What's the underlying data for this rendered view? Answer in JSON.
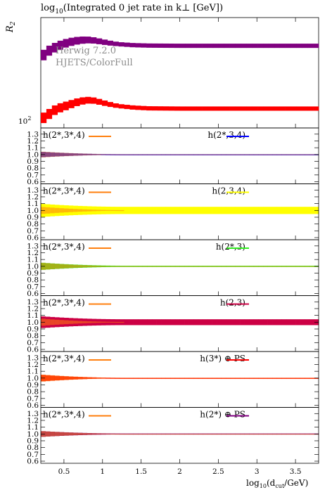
{
  "header": {
    "title": "log10(Integrated 0 jet rate in k⊥ [GeV])",
    "title_main": "log",
    "title_sub": "10",
    "title_rest": "(Integrated 0 jet rate in k",
    "title_kperp": "⊥",
    "title_end": " [GeV])"
  },
  "main_plot": {
    "ylabel": "R",
    "ylabel_sub": "2",
    "ytick_label": "10",
    "ytick_sup": "2",
    "brand_line1": "Herwig 7.2.0",
    "brand_line2": "HJETS/ColorFull"
  },
  "x_axis": {
    "label_main": "log",
    "label_sub": "10",
    "label_mid": "(d",
    "label_sub2": "cut",
    "label_end": "/GeV)",
    "ticks": [
      "0.5",
      "1",
      "1.5",
      "2",
      "2.5",
      "3",
      "3.5"
    ],
    "range": [
      0.2,
      3.8
    ]
  },
  "colors": {
    "reference": "#ff7f0e",
    "h23_34": "#0000ff",
    "h234": "#ffff00",
    "h23": "#33ee22",
    "h2_3": "#cc0044",
    "h3PS": "#ff0000",
    "h2PS": "#800080"
  },
  "ratio_ticks": [
    "1.3",
    "1.2",
    "1.1",
    "1.0",
    "0.9",
    "0.8",
    "0.7",
    "0.6"
  ],
  "ratio_panels": [
    {
      "ref_label": "h(2*,3*,4)",
      "cmp_label": "h(2*,3,4)",
      "cmp_color": "#0000ff",
      "band": 0.0,
      "start_band": 0.04
    },
    {
      "ref_label": "h(2*,3*,4)",
      "cmp_label": "h(2,3,4)",
      "cmp_color": "#ffff00",
      "band": 0.05,
      "start_band": 0.05
    },
    {
      "ref_label": "h(2*,3*,4)",
      "cmp_label": "h(2*,3)",
      "cmp_color": "#33ee22",
      "band": 0.005,
      "start_band": 0.05
    },
    {
      "ref_label": "h(2*,3*,4)",
      "cmp_label": "h(2,3)",
      "cmp_color": "#cc0044",
      "band": 0.04,
      "start_band": 0.05
    },
    {
      "ref_label": "h(2*,3*,4)",
      "cmp_label": "h(3*) ⊕ PS",
      "cmp_color": "#ff0000",
      "band": 0.0,
      "start_band": 0.05
    },
    {
      "ref_label": "h(2*,3*,4)",
      "cmp_label": "h(2*) ⊕ PS",
      "cmp_color": "#800080",
      "band": 0.003,
      "start_band": 0.04
    }
  ],
  "chart_data": [
    {
      "type": "line",
      "title": "log10(Integrated 0 jet rate in k⊥ [GeV])",
      "xlabel": "log10(dcut/GeV)",
      "ylabel": "R2",
      "xlim": [
        0.2,
        3.8
      ],
      "yscale": "log",
      "series": [
        {
          "name": "h(3*) ⊕ PS",
          "color": "#ff0000",
          "x": [
            0.2,
            0.3,
            0.4,
            0.5,
            0.6,
            0.7,
            0.8,
            0.9,
            1.0,
            1.1,
            1.2,
            1.4,
            1.6,
            2.0,
            2.5,
            3.0,
            3.5,
            3.8
          ],
          "y": [
            99,
            101,
            103,
            104,
            105,
            106,
            106.5,
            106.3,
            105.5,
            104.8,
            104.2,
            103.6,
            103.3,
            103.2,
            103.2,
            103.2,
            103.2,
            103.2
          ]
        },
        {
          "name": "",
          "color": "#800080",
          "x": [
            0.2,
            0.3,
            0.4,
            0.5,
            0.6,
            0.7,
            0.8,
            0.9,
            1.0,
            1.1,
            1.2,
            1.4,
            1.6,
            2.0,
            2.5,
            3.0,
            3.5,
            3.8
          ],
          "y": [
            125,
            128,
            130,
            131.5,
            132.5,
            133.2,
            133.4,
            133.1,
            132.4,
            131.8,
            131.3,
            130.8,
            130.6,
            130.5,
            130.5,
            130.5,
            130.5,
            130.5
          ]
        }
      ]
    }
  ]
}
